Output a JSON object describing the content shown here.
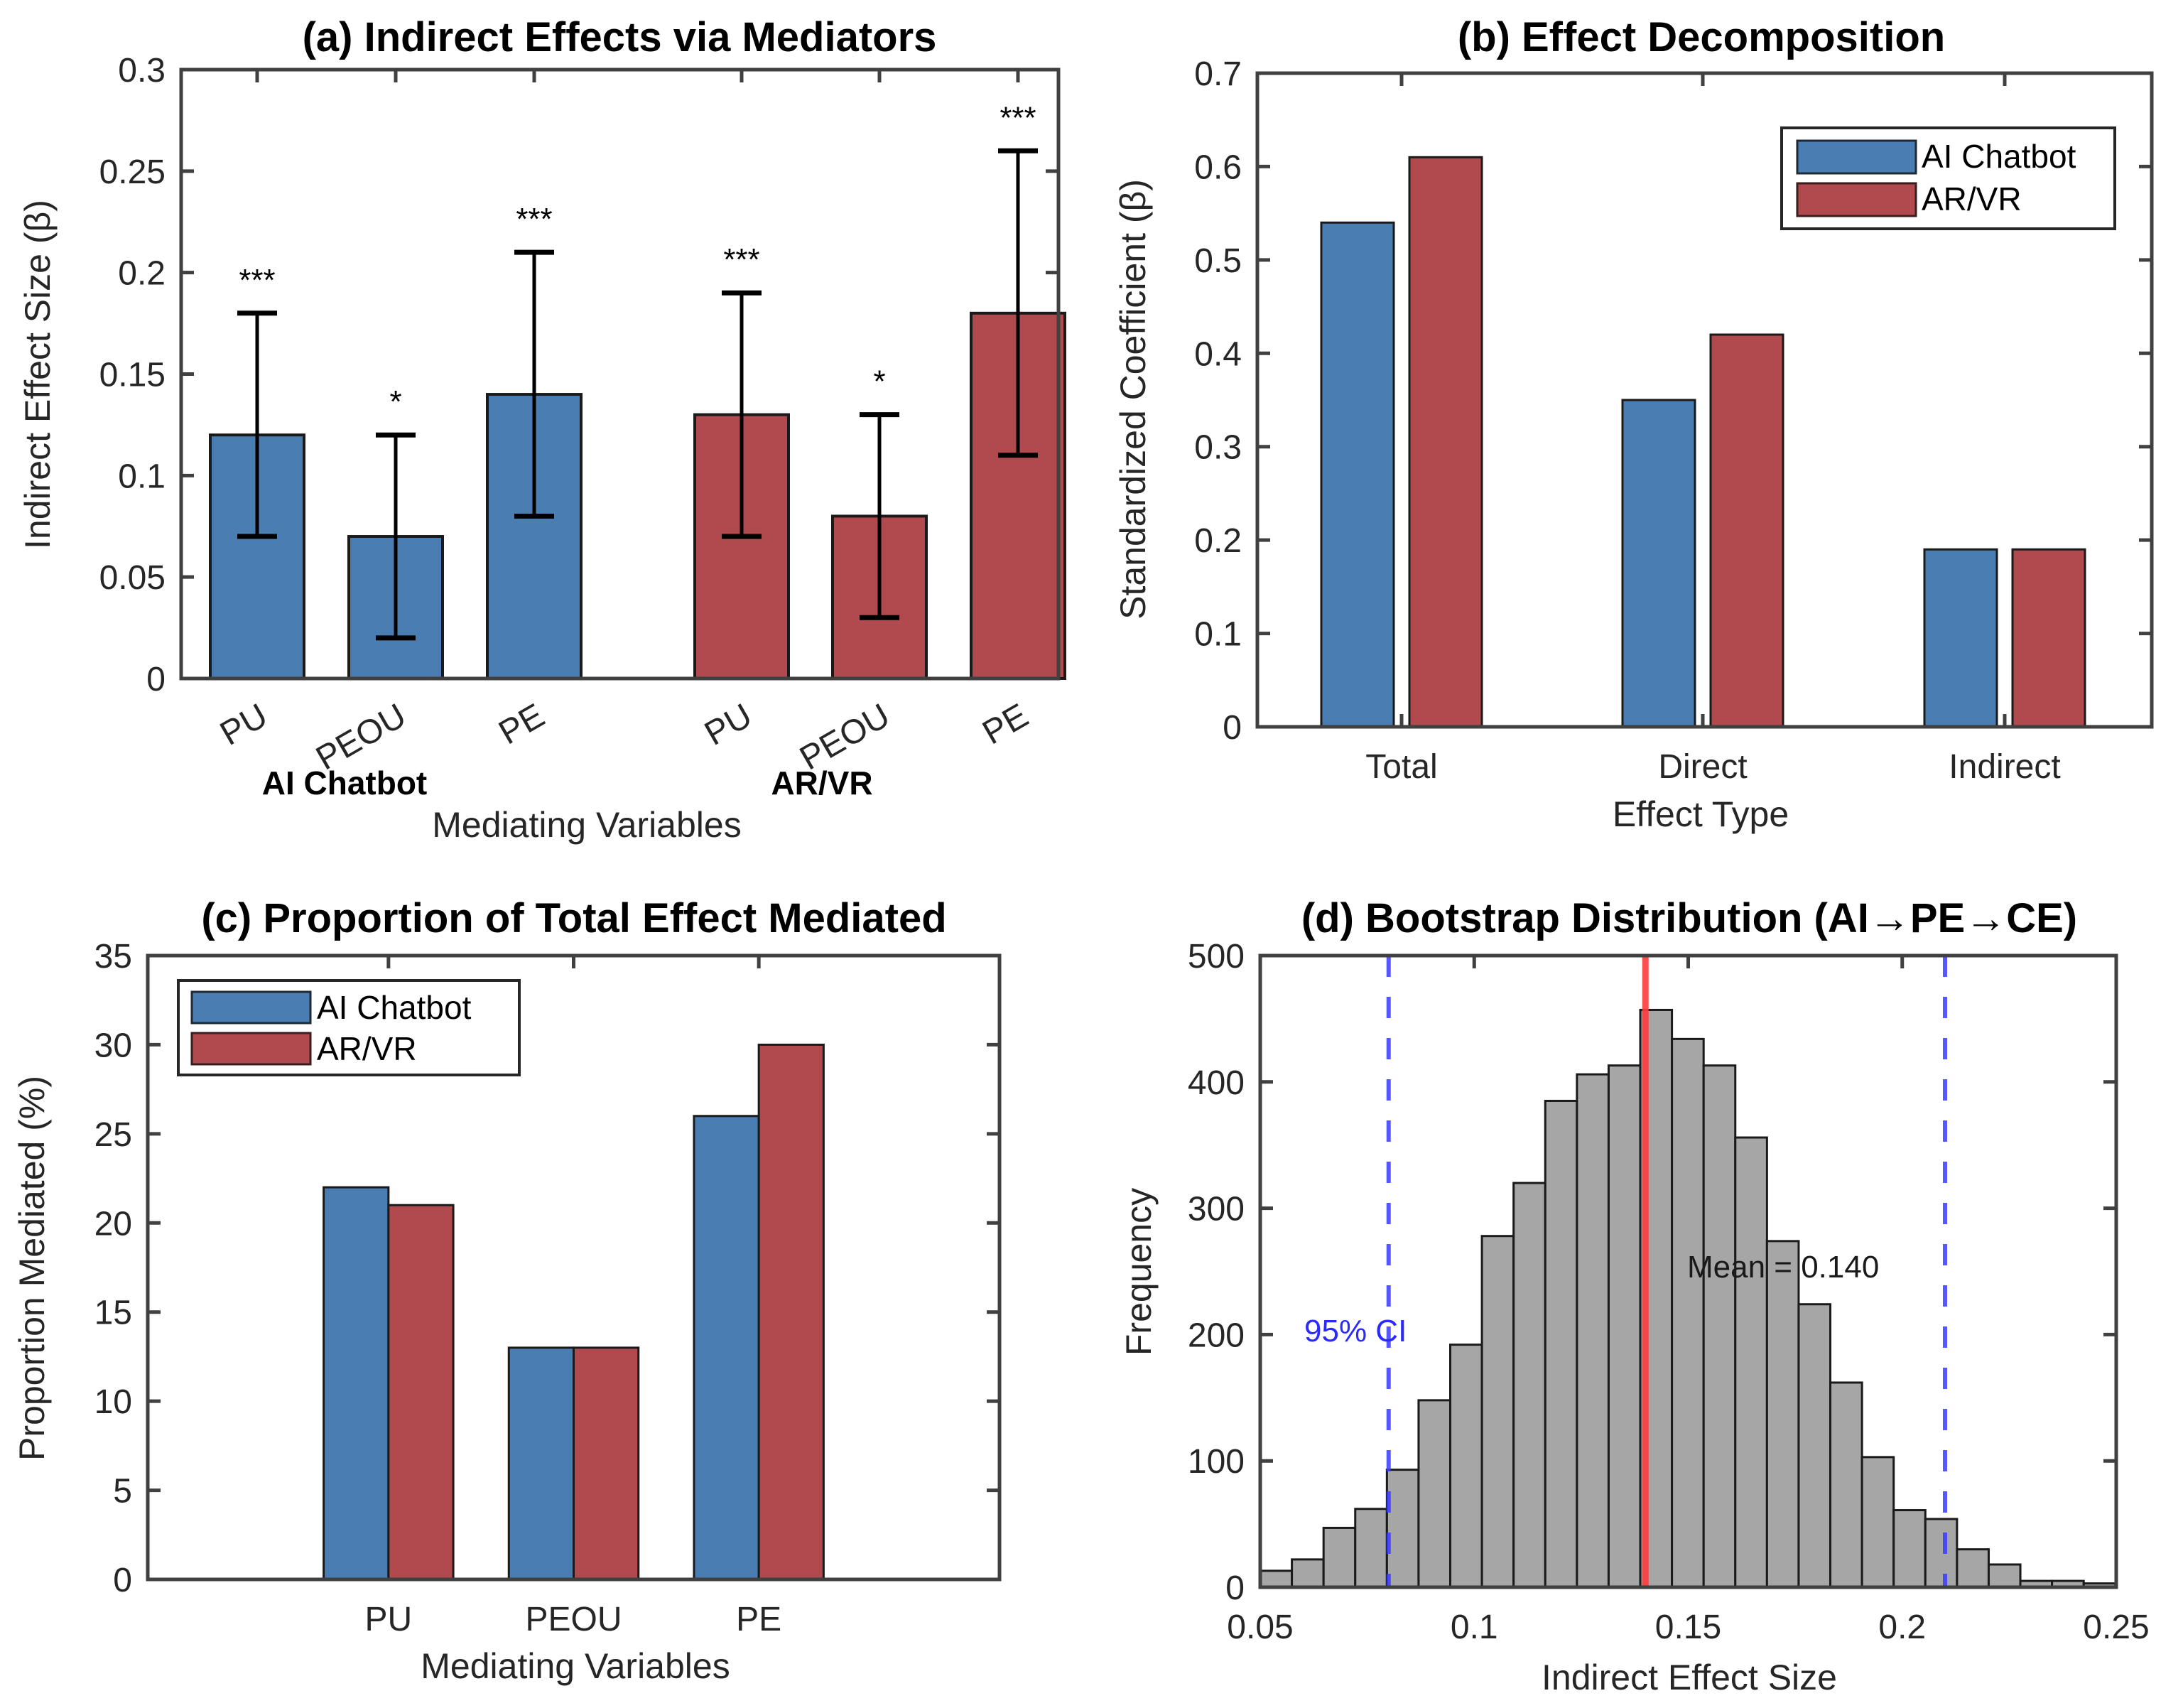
{
  "colors": {
    "ai_chatbot": "#4A7EB3",
    "ar_vr": "#B04A4E",
    "histogram": "#A6A6A6",
    "mean_line": "#FF3B3B",
    "ci_line": "#3A3AFF",
    "axis": "#404040"
  },
  "chart_data": [
    {
      "id": "a",
      "type": "bar",
      "title": "(a) Indirect Effects via Mediators",
      "xlabel": "Mediating Variables",
      "ylabel": "Indirect Effect Size (β)",
      "ylim": [
        0,
        0.3
      ],
      "yticks": [
        0,
        0.05,
        0.1,
        0.15,
        0.2,
        0.25,
        0.3
      ],
      "ytick_labels": [
        "0",
        "0.05",
        "0.1",
        "0.15",
        "0.2",
        "0.25",
        "0.3"
      ],
      "categories": [
        "PU",
        "PEOU",
        "PE",
        "PU",
        "PEOU",
        "PE"
      ],
      "groups": [
        {
          "name": "AI Chatbot",
          "series": "ai_chatbot",
          "members": [
            0,
            1,
            2
          ]
        },
        {
          "name": "AR/VR",
          "series": "ar_vr",
          "members": [
            3,
            4,
            5
          ]
        }
      ],
      "values": [
        0.12,
        0.07,
        0.14,
        0.13,
        0.08,
        0.18
      ],
      "ci_lower": [
        0.07,
        0.02,
        0.08,
        0.07,
        0.03,
        0.11
      ],
      "ci_upper": [
        0.18,
        0.12,
        0.21,
        0.19,
        0.13,
        0.26
      ],
      "significance": [
        "***",
        "*",
        "***",
        "***",
        "*",
        "***"
      ],
      "xtick_rotation_deg": 30,
      "grid": false
    },
    {
      "id": "b",
      "type": "bar",
      "title": "(b) Effect Decomposition",
      "xlabel": "Effect Type",
      "ylabel": "Standardized Coefficient (β)",
      "ylim": [
        0,
        0.7
      ],
      "yticks": [
        0,
        0.1,
        0.2,
        0.3,
        0.4,
        0.5,
        0.6,
        0.7
      ],
      "ytick_labels": [
        "0",
        "0.1",
        "0.2",
        "0.3",
        "0.4",
        "0.5",
        "0.6",
        "0.7"
      ],
      "categories": [
        "Total",
        "Direct",
        "Indirect"
      ],
      "series": [
        {
          "name": "AI Chatbot",
          "key": "ai_chatbot",
          "values": [
            0.54,
            0.35,
            0.19
          ]
        },
        {
          "name": "AR/VR",
          "key": "ar_vr",
          "values": [
            0.61,
            0.42,
            0.19
          ]
        }
      ],
      "legend": "top-right",
      "grid": false
    },
    {
      "id": "c",
      "type": "bar",
      "title": "(c) Proportion of Total Effect Mediated",
      "xlabel": "Mediating Variables",
      "ylabel": "Proportion Mediated (%)",
      "ylim": [
        0,
        35
      ],
      "xlim": [
        0.2,
        4.8
      ],
      "yticks": [
        0,
        5,
        10,
        15,
        20,
        25,
        30,
        35
      ],
      "ytick_labels": [
        "0",
        "5",
        "10",
        "15",
        "20",
        "25",
        "30",
        "35"
      ],
      "categories": [
        "PU",
        "PEOU",
        "PE"
      ],
      "series": [
        {
          "name": "AI Chatbot",
          "key": "ai_chatbot",
          "values": [
            22,
            13,
            26
          ]
        },
        {
          "name": "AR/VR",
          "key": "ar_vr",
          "values": [
            21,
            13,
            30
          ]
        }
      ],
      "legend": "top-left",
      "grid": false
    },
    {
      "id": "d",
      "type": "histogram",
      "title": "(d) Bootstrap Distribution (AI→PE→CE)",
      "xlabel": "Indirect Effect Size",
      "ylabel": "Frequency",
      "xlim": [
        0.05,
        0.25
      ],
      "ylim": [
        0,
        500
      ],
      "xticks": [
        0.05,
        0.1,
        0.15,
        0.2,
        0.25
      ],
      "xtick_labels": [
        "0.05",
        "0.1",
        "0.15",
        "0.2",
        "0.25"
      ],
      "yticks": [
        0,
        100,
        200,
        300,
        400,
        500
      ],
      "ytick_labels": [
        "0",
        "100",
        "200",
        "300",
        "400",
        "500"
      ],
      "bin_start": 0.05,
      "bin_width": 0.0074,
      "counts": [
        13,
        22,
        47,
        62,
        93,
        148,
        192,
        278,
        320,
        385,
        406,
        413,
        457,
        434,
        413,
        356,
        274,
        224,
        162,
        103,
        61,
        54,
        30,
        18,
        5,
        5,
        3
      ],
      "mean": 0.14,
      "mean_label": "Mean = 0.140",
      "ci": [
        0.08,
        0.21
      ],
      "ci_label": "95% CI",
      "grid": false
    }
  ]
}
